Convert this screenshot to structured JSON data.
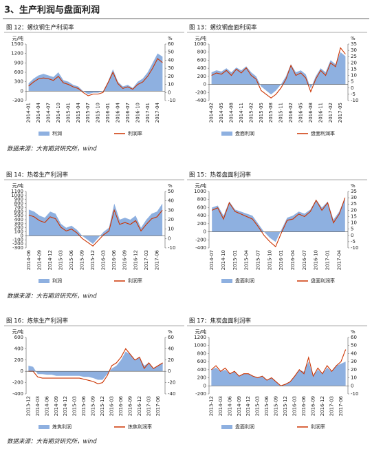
{
  "heading": "3、生产利润与盘面利润",
  "sources": [
    "数据来源：大有期货研究所，wind",
    "数据来源：大有期货研究所，wind",
    "数据来源：大有期货研究所，wind"
  ],
  "chart_data": [
    {
      "type": "combo",
      "title": "图 12：螺纹钢生产利润率",
      "ylabel": "元/吨",
      "y2label": "%",
      "categories": [
        "2014-01",
        null,
        "2014-04",
        null,
        "2014-07",
        null,
        "2014-10",
        null,
        "2015-01",
        null,
        "2015-04",
        null,
        "2015-07",
        null,
        "2015-10",
        null,
        "2016-01",
        null,
        "2016-04",
        null,
        "2016-07",
        null,
        "2016-10",
        null,
        "2017-01",
        null,
        "2017-04",
        null
      ],
      "ylim": [
        -300,
        1500
      ],
      "yticks": [
        -300,
        0,
        300,
        600,
        900,
        1200,
        1500
      ],
      "y2lim": [
        -10,
        60
      ],
      "y2ticks": [
        -10,
        0,
        10,
        20,
        30,
        40,
        50,
        60
      ],
      "series": [
        {
          "name": "利润",
          "type": "area",
          "color": "#8eb0e0",
          "values": [
            250,
            400,
            500,
            550,
            500,
            450,
            600,
            350,
            300,
            200,
            150,
            0,
            -100,
            -50,
            -50,
            0,
            300,
            700,
            300,
            150,
            200,
            100,
            300,
            400,
            600,
            900,
            1200,
            1100
          ]
        },
        {
          "name": "利润率",
          "type": "line",
          "axis": "y2",
          "color": "#cc3300",
          "values": [
            8,
            13,
            17,
            18,
            17,
            15,
            20,
            12,
            10,
            7,
            5,
            0,
            -4,
            -2,
            -2,
            0,
            12,
            25,
            11,
            5,
            7,
            4,
            10,
            13,
            20,
            30,
            42,
            37
          ]
        }
      ]
    },
    {
      "type": "combo",
      "title": "图 13：螺纹钢盘面利润率",
      "ylabel": "元/吨",
      "y2label": "%",
      "categories": [
        "2014-02",
        null,
        "2014-05",
        null,
        "2014-08",
        null,
        "2014-11",
        null,
        "2015-02",
        null,
        "2015-05",
        null,
        "2015-08",
        null,
        "2015-11",
        null,
        "2016-02",
        null,
        "2016-05",
        null,
        "2016-08",
        null,
        "2016-11",
        null,
        "2017-02",
        null,
        "2017-05",
        null
      ],
      "ylim": [
        -400,
        1000
      ],
      "yticks": [
        -400,
        -200,
        0,
        200,
        400,
        600,
        800,
        1000
      ],
      "y2lim": [
        -10,
        35
      ],
      "y2ticks": [
        -10,
        -5,
        0,
        5,
        10,
        15,
        20,
        25,
        30,
        35
      ],
      "series": [
        {
          "name": "盘面利润",
          "type": "area",
          "color": "#8eb0e0",
          "values": [
            300,
            350,
            320,
            400,
            300,
            420,
            350,
            450,
            300,
            200,
            -50,
            -150,
            -250,
            -150,
            0,
            200,
            500,
            300,
            350,
            250,
            -100,
            200,
            400,
            300,
            600,
            500,
            800,
            700
          ]
        },
        {
          "name": "盘面利润率",
          "type": "line",
          "axis": "y2",
          "color": "#cc3300",
          "values": [
            10,
            12,
            11,
            14,
            10,
            15,
            12,
            16,
            10,
            7,
            -2,
            -5,
            -8,
            -5,
            0,
            7,
            18,
            10,
            12,
            8,
            -3,
            7,
            14,
            10,
            20,
            17,
            32,
            27
          ]
        }
      ]
    },
    {
      "type": "combo",
      "title": "图 14：热卷生产利润率",
      "ylabel": "元/吨",
      "y2label": "%",
      "categories": [
        "2014-06",
        null,
        "2014-09",
        null,
        "2014-12",
        null,
        "2015-03",
        null,
        "2015-06",
        null,
        "2015-09",
        null,
        "2015-12",
        null,
        "2016-03",
        null,
        "2016-06",
        null,
        "2016-09",
        null,
        "2016-12",
        null,
        "2017-03",
        null,
        "2017-06",
        null
      ],
      "ylim": [
        -300,
        1100
      ],
      "yticks": [
        -300,
        -200,
        -100,
        0,
        100,
        200,
        300,
        400,
        500,
        600,
        700,
        800,
        900,
        1000,
        1100
      ],
      "y2lim": [
        -10,
        50
      ],
      "y2ticks": [
        -10,
        0,
        10,
        20,
        30,
        40,
        50
      ],
      "series": [
        {
          "name": "利润",
          "type": "area",
          "color": "#8eb0e0",
          "values": [
            650,
            600,
            500,
            450,
            600,
            550,
            300,
            200,
            250,
            150,
            0,
            -100,
            -200,
            -50,
            100,
            200,
            800,
            400,
            450,
            400,
            500,
            200,
            400,
            550,
            600,
            800
          ]
        },
        {
          "name": "利润率",
          "type": "line",
          "axis": "y2",
          "color": "#cc3300",
          "values": [
            25,
            23,
            19,
            17,
            23,
            21,
            12,
            8,
            10,
            6,
            0,
            -4,
            -8,
            -2,
            4,
            8,
            30,
            15,
            17,
            15,
            19,
            8,
            15,
            21,
            23,
            30
          ]
        }
      ]
    },
    {
      "type": "combo",
      "title": "图 15：热卷盘面利润率",
      "ylabel": "元/吨",
      "y2label": "%",
      "categories": [
        "2014-07",
        null,
        "2014-10",
        null,
        "2015-01",
        null,
        "2015-04",
        null,
        "2015-07",
        null,
        "2015-10",
        null,
        "2016-01",
        null,
        "2016-04",
        null,
        "2016-07",
        null,
        "2016-10",
        null,
        "2017-01",
        null,
        "2017-04",
        null
      ],
      "ylim": [
        -400,
        1000
      ],
      "yticks": [
        -400,
        -200,
        0,
        200,
        400,
        600,
        800,
        1000
      ],
      "y2lim": [
        -10,
        35
      ],
      "y2ticks": [
        -10,
        -5,
        0,
        5,
        10,
        15,
        20,
        25,
        30,
        35
      ],
      "series": [
        {
          "name": "盘面利润",
          "type": "area",
          "color": "#8eb0e0",
          "values": [
            600,
            650,
            400,
            750,
            550,
            500,
            450,
            400,
            200,
            0,
            -150,
            -250,
            50,
            350,
            400,
            500,
            450,
            550,
            800,
            600,
            750,
            300,
            500,
            850
          ]
        },
        {
          "name": "盘面利润率",
          "type": "line",
          "axis": "y2",
          "color": "#cc3300",
          "values": [
            20,
            22,
            13,
            26,
            19,
            17,
            15,
            13,
            7,
            0,
            -5,
            -9,
            2,
            12,
            13,
            17,
            15,
            19,
            28,
            20,
            26,
            10,
            17,
            30
          ]
        }
      ]
    },
    {
      "type": "combo",
      "title": "图 16：炼焦生产利润率",
      "ylabel": "元/吨",
      "y2label": "%",
      "categories": [
        "2013-12",
        null,
        "2014-03",
        null,
        "2014-06",
        null,
        "2014-09",
        null,
        "2014-12",
        null,
        "2015-03",
        null,
        "2015-06",
        null,
        "2015-09",
        null,
        "2015-12",
        null,
        "2016-03",
        null,
        "2016-06",
        null,
        "2016-09",
        null,
        "2016-12",
        null,
        "2017-03",
        null,
        "2017-06",
        null
      ],
      "ylim": [
        -400,
        600
      ],
      "yticks": [
        -400,
        -200,
        0,
        200,
        400,
        600
      ],
      "y2lim": [
        -40,
        60
      ],
      "y2ticks": [
        -40,
        -20,
        0,
        20,
        40,
        60
      ],
      "series": [
        {
          "name": "炼焦利润",
          "type": "area",
          "color": "#8eb0e0",
          "values": [
            100,
            80,
            -50,
            -50,
            -60,
            -60,
            -80,
            -80,
            -80,
            -80,
            -80,
            -80,
            -100,
            -100,
            -120,
            -150,
            -150,
            -50,
            50,
            100,
            200,
            350,
            300,
            200,
            250,
            100,
            150,
            50,
            100,
            150
          ]
        },
        {
          "name": "炼焦利润率",
          "type": "line",
          "axis": "y2",
          "color": "#cc3300",
          "values": [
            0,
            0,
            -10,
            -12,
            -12,
            -12,
            -12,
            -12,
            -12,
            -12,
            -12,
            -12,
            -14,
            -16,
            -18,
            -22,
            -20,
            -8,
            10,
            15,
            25,
            40,
            30,
            20,
            25,
            5,
            15,
            5,
            10,
            15
          ]
        }
      ]
    },
    {
      "type": "combo",
      "title": "图 17：焦炭盘面利润率",
      "ylabel": "元/吨",
      "y2label": "%",
      "categories": [
        "2013-12",
        null,
        "2014-03",
        null,
        "2014-06",
        null,
        "2014-09",
        null,
        "2014-12",
        null,
        "2015-03",
        null,
        "2015-06",
        null,
        "2015-09",
        null,
        "2015-12",
        null,
        "2016-03",
        null,
        "2016-06",
        null,
        "2016-09",
        null,
        "2016-12",
        null,
        "2017-03",
        null,
        "2017-06",
        null
      ],
      "ylim": [
        -200,
        1200
      ],
      "yticks": [
        -200,
        0,
        200,
        400,
        600,
        800,
        1000,
        1200
      ],
      "y2lim": [
        -10,
        60
      ],
      "y2ticks": [
        -10,
        0,
        10,
        20,
        30,
        40,
        50,
        60
      ],
      "series": [
        {
          "name": "盘面利润",
          "type": "area",
          "color": "#8eb0e0",
          "values": [
            400,
            450,
            350,
            400,
            300,
            350,
            250,
            300,
            300,
            250,
            200,
            250,
            150,
            200,
            100,
            0,
            50,
            100,
            250,
            400,
            350,
            600,
            250,
            400,
            300,
            450,
            350,
            500,
            550,
            600
          ]
        },
        {
          "name": "利润率",
          "type": "line",
          "axis": "y2",
          "color": "#cc3300",
          "values": [
            20,
            25,
            18,
            22,
            15,
            18,
            12,
            15,
            15,
            12,
            10,
            12,
            7,
            10,
            5,
            0,
            2,
            5,
            12,
            20,
            15,
            35,
            12,
            22,
            15,
            25,
            18,
            25,
            30,
            45
          ]
        }
      ]
    }
  ]
}
